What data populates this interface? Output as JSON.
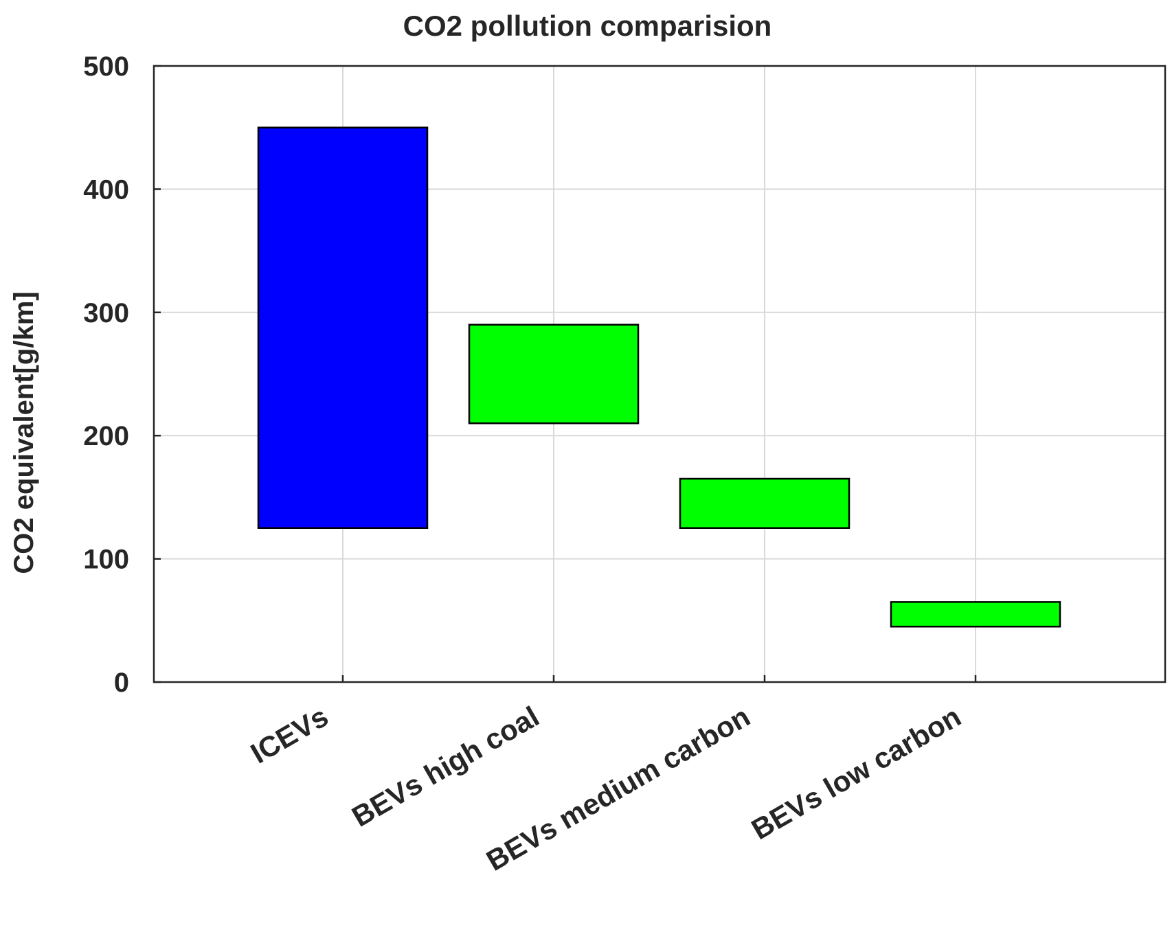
{
  "chart_data": {
    "type": "bar",
    "subtype": "floating-range",
    "title": "CO2 pollution comparision",
    "xlabel": "",
    "ylabel": "CO2 equivalent[g/km]",
    "ylim": [
      0,
      500
    ],
    "yticks": [
      0,
      100,
      200,
      300,
      400,
      500
    ],
    "grid": true,
    "categories": [
      "ICEVs",
      "BEVs high coal",
      "BEVs medium carbon",
      "BEVs low carbon"
    ],
    "ranges": [
      {
        "low": 125,
        "high": 450,
        "color": "#0000ff"
      },
      {
        "low": 210,
        "high": 290,
        "color": "#00ff00"
      },
      {
        "low": 125,
        "high": 165,
        "color": "#00ff00"
      },
      {
        "low": 45,
        "high": 65,
        "color": "#00ff00"
      }
    ]
  }
}
